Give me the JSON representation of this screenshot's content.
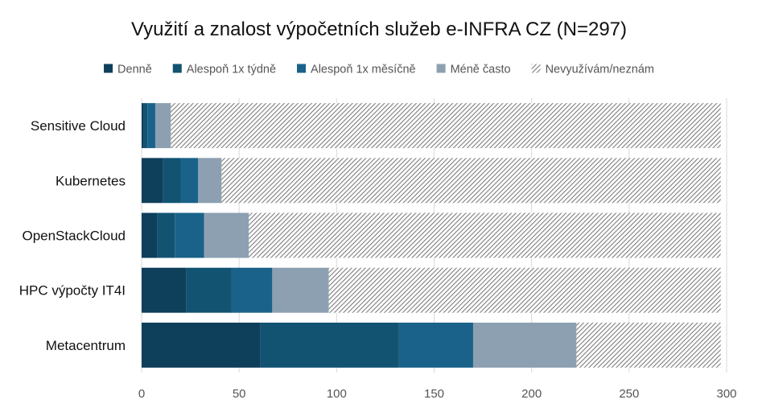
{
  "chart_data": {
    "type": "bar",
    "orientation": "horizontal",
    "stacked": true,
    "title": "Využití a znalost výpočetních služeb e-INFRA CZ (N=297)",
    "categories": [
      "Sensitive Cloud",
      "Kubernetes",
      "OpenStackCloud",
      "HPC výpočty IT4I",
      "Metacentrum"
    ],
    "series": [
      {
        "name": "Denně",
        "color": "#0e3f5b",
        "pattern": false,
        "values": [
          1,
          11,
          8,
          23,
          61
        ]
      },
      {
        "name": "Alespoň 1x týdně",
        "color": "#125372",
        "pattern": false,
        "values": [
          2,
          9,
          9,
          23,
          71
        ]
      },
      {
        "name": "Alespoň 1x měsíčně",
        "color": "#1a6289",
        "pattern": false,
        "values": [
          4,
          9,
          15,
          21,
          38
        ]
      },
      {
        "name": "Méně často",
        "color": "#8ca0b1",
        "pattern": false,
        "values": [
          8,
          12,
          23,
          29,
          53
        ]
      },
      {
        "name": "Nevyužívám/neznám",
        "color": "#8a8a8a",
        "pattern": true,
        "values": [
          282,
          256,
          242,
          201,
          74
        ]
      }
    ],
    "xlim": [
      0,
      300
    ],
    "xticks": [
      0,
      50,
      100,
      150,
      200,
      250,
      300
    ],
    "grid": true,
    "legend_position": "top"
  }
}
